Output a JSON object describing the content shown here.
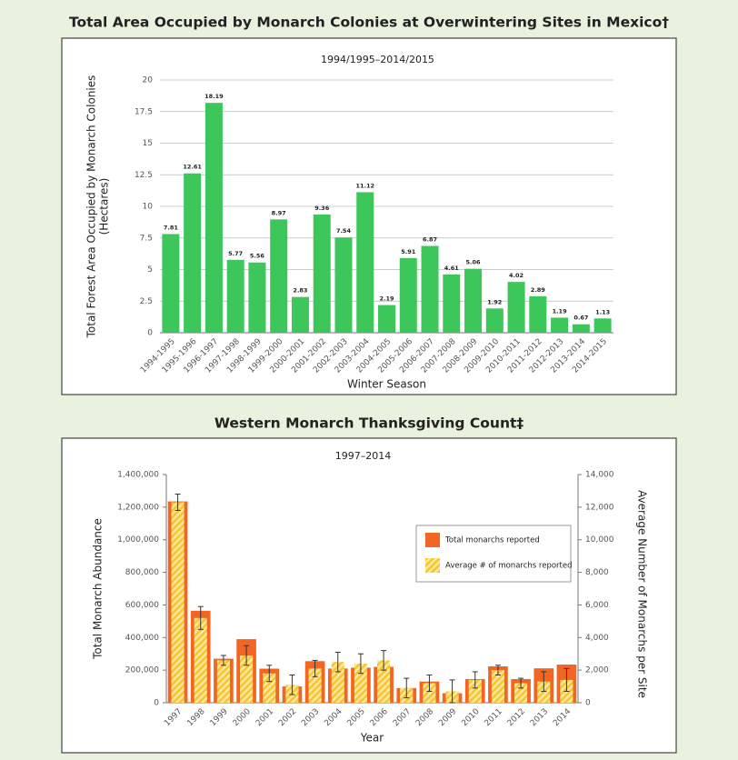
{
  "chart_data": [
    {
      "type": "bar",
      "title": "Total Area Occupied by Monarch Colonies at Overwintering Sites in Mexico†",
      "subtitle": "1994/1995–2014/2015",
      "x_label": "Winter Season",
      "y_label": [
        "Total Forest Area Occupied by Monarch Colonies",
        "(Hectares)"
      ],
      "categories": [
        "1994-1995",
        "1995-1996",
        "1996-1997",
        "1997-1998",
        "1998-1999",
        "1999-2000",
        "2000-2001",
        "2001-2002",
        "2002-2003",
        "2003-2004",
        "2004-2005",
        "2005-2006",
        "2006-2007",
        "2007-2008",
        "2008-2009",
        "2009-2010",
        "2010-2011",
        "2011-2012",
        "2012-2013",
        "2013-2014",
        "2014-2015"
      ],
      "values": [
        7.81,
        12.61,
        18.19,
        5.77,
        5.56,
        8.97,
        2.83,
        9.36,
        7.54,
        11.12,
        2.19,
        5.91,
        6.87,
        4.61,
        5.06,
        1.92,
        4.02,
        2.89,
        1.19,
        0.67,
        1.13
      ],
      "color": "#3dc75b",
      "data_labels": true,
      "ylim": [
        0,
        20
      ],
      "yticks": [
        0,
        2.5,
        5,
        7.5,
        10,
        12.5,
        15,
        17.5,
        20
      ],
      "grid": true
    },
    {
      "type": "bar",
      "title": "Western Monarch Thanksgiving Count‡",
      "subtitle": "1997–2014",
      "x_label": "Year",
      "y_label": [
        "Total Monarch Abundance"
      ],
      "y2_label": "Average Number of Monarchs per Site",
      "categories": [
        "1997",
        "1998",
        "1999",
        "2000",
        "2001",
        "2002",
        "2003",
        "2004",
        "2005",
        "2006",
        "2007",
        "2008",
        "2009",
        "2010",
        "2011",
        "2012",
        "2013",
        "2014"
      ],
      "series": [
        {
          "name": "Total monarchs reported",
          "color": "#f26522",
          "values": [
            1235000,
            564000,
            270000,
            390000,
            209000,
            100000,
            255000,
            210000,
            215000,
            220000,
            90000,
            130000,
            58000,
            145000,
            223000,
            145000,
            211000,
            234000
          ]
        },
        {
          "name": "Average # of monarchs reported",
          "color": "#f7c531",
          "axis": "y2",
          "hatch": true,
          "values": [
            12300,
            5200,
            2600,
            2900,
            1800,
            1100,
            2100,
            2500,
            2400,
            2600,
            900,
            1200,
            700,
            1400,
            2000,
            1200,
            1300,
            1400
          ],
          "errors": [
            500,
            700,
            300,
            600,
            500,
            600,
            500,
            600,
            600,
            600,
            600,
            500,
            700,
            500,
            300,
            300,
            600,
            700
          ]
        }
      ],
      "legend": "right",
      "grid": false,
      "ylim": [
        0,
        1400000
      ],
      "yticks": [
        0,
        {
          "value": 200000,
          "label": "200,000"
        },
        {
          "value": 400000,
          "label": "400,000"
        },
        {
          "value": 600000,
          "label": "600,000"
        },
        {
          "value": 800000,
          "label": "800,000"
        },
        {
          "value": 1000000,
          "label": "1,000,000"
        },
        {
          "value": 1200000,
          "label": "1,200,000"
        },
        {
          "value": 1400000,
          "label": "1,400,000"
        }
      ],
      "y2lim": [
        0,
        14000
      ],
      "y2ticks": [
        0,
        {
          "value": 2000,
          "label": "2,000"
        },
        {
          "value": 4000,
          "label": "4,000"
        },
        {
          "value": 6000,
          "label": "6,000"
        },
        {
          "value": 8000,
          "label": "8,000"
        },
        {
          "value": 10000,
          "label": "10,000"
        },
        {
          "value": 12000,
          "label": "12,000"
        },
        {
          "value": 14000,
          "label": "14,000"
        }
      ]
    }
  ]
}
